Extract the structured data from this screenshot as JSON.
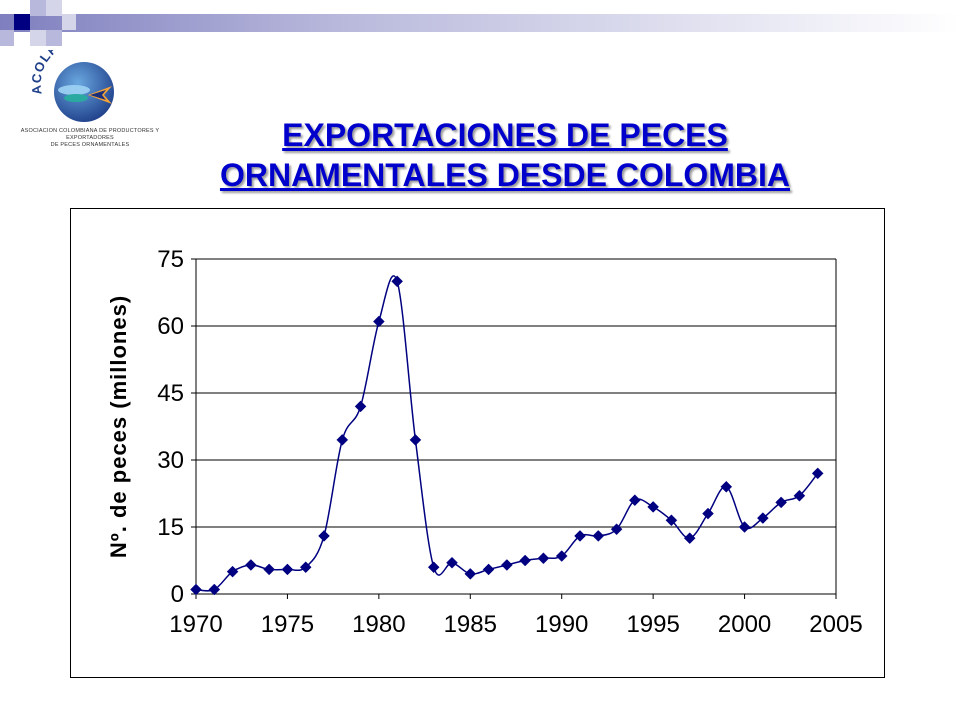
{
  "slide": {
    "title_line1": "EXPORTACIONES DE PECES",
    "title_line2": "ORNAMENTALES DESDE COLOMBIA"
  },
  "logo": {
    "name": "ACOLPECES",
    "caption_line1": "ASOCIACION COLOMBIANA DE PRODUCTORES Y EXPORTADORES",
    "caption_line2": "DE PECES ORNAMENTALES"
  },
  "colors": {
    "title": "#0000CC",
    "series": "#000080",
    "gridline": "#000000"
  },
  "chart_data": {
    "type": "line",
    "title": "",
    "xlabel": "",
    "ylabel": "Nº. de peces (millones)",
    "xlim": [
      1970,
      2005
    ],
    "ylim": [
      0,
      75
    ],
    "x_ticks": [
      "1970",
      "1975",
      "1980",
      "1985",
      "1990",
      "1995",
      "2000",
      "2005"
    ],
    "y_ticks": [
      "0",
      "15",
      "30",
      "45",
      "60",
      "75"
    ],
    "grid": "horizontal",
    "legend": "none",
    "series": [
      {
        "x": [
          1970,
          1971,
          1972,
          1973,
          1974,
          1975,
          1976,
          1977,
          1978,
          1979,
          1980,
          1981,
          1982,
          1983,
          1984,
          1985,
          1986,
          1987,
          1988,
          1989,
          1990,
          1991,
          1992,
          1993,
          1994,
          1995,
          1996,
          1997,
          1998,
          1999,
          2000,
          2001,
          2002,
          2003,
          2004
        ],
        "values": [
          1,
          1,
          5,
          6.5,
          5.5,
          5.5,
          6,
          13,
          34.5,
          42,
          61,
          70,
          34.5,
          6,
          7,
          4.5,
          5.5,
          6.5,
          7.5,
          8,
          8.5,
          13,
          13,
          14.5,
          21,
          19.5,
          16.5,
          12.5,
          18,
          24,
          15,
          17,
          20.5,
          22,
          27
        ]
      }
    ]
  }
}
